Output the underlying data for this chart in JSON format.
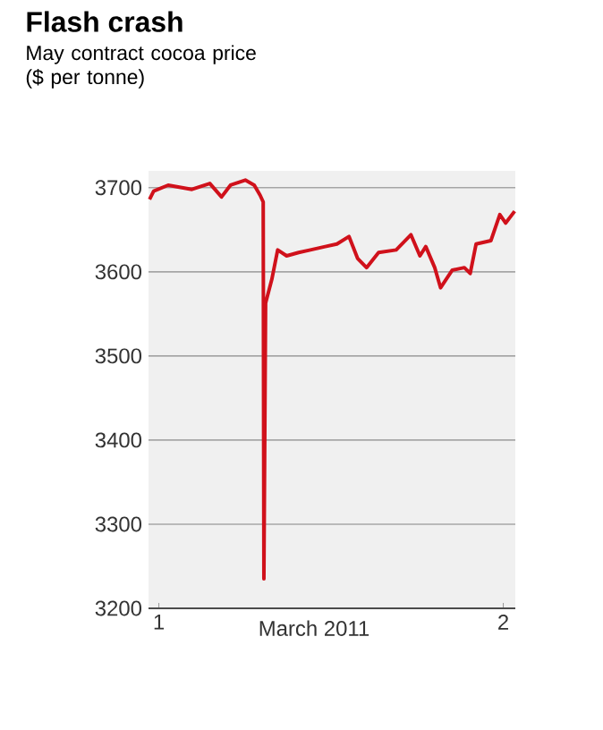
{
  "chart_data": {
    "type": "line",
    "title": "Flash crash",
    "subtitle": "May contract cocoa price ($ per tonne)",
    "xlabel": "March 2011",
    "x": [
      0.973,
      0.985,
      1.027,
      1.096,
      1.148,
      1.182,
      1.208,
      1.251,
      1.277,
      1.294,
      1.303,
      1.305,
      1.31,
      1.328,
      1.345,
      1.371,
      1.406,
      1.44,
      1.483,
      1.517,
      1.552,
      1.577,
      1.603,
      1.638,
      1.689,
      1.732,
      1.758,
      1.775,
      1.801,
      1.818,
      1.852,
      1.887,
      1.904,
      1.921,
      1.964,
      1.99,
      2.007,
      2.033
    ],
    "series": [
      {
        "color": "#d0111b",
        "values": [
          3686,
          3696,
          3703,
          3698,
          3705,
          3689,
          3703,
          3709,
          3703,
          3691,
          3683,
          3235,
          3563,
          3591,
          3626,
          3619,
          3623,
          3626,
          3630,
          3633,
          3642,
          3616,
          3605,
          3623,
          3626,
          3644,
          3619,
          3630,
          3605,
          3581,
          3602,
          3605,
          3598,
          3633,
          3637,
          3668,
          3658,
          3672
        ]
      }
    ],
    "xlim": [
      0.97,
      2.035
    ],
    "ylim": [
      3200,
      3720
    ],
    "xticks": [
      {
        "value": 1,
        "label": "1"
      },
      {
        "value": 2,
        "label": "2"
      }
    ],
    "yticks": [
      3200,
      3300,
      3400,
      3500,
      3600,
      3700
    ],
    "grid": "y",
    "marker": "none",
    "line_style": "solid"
  }
}
